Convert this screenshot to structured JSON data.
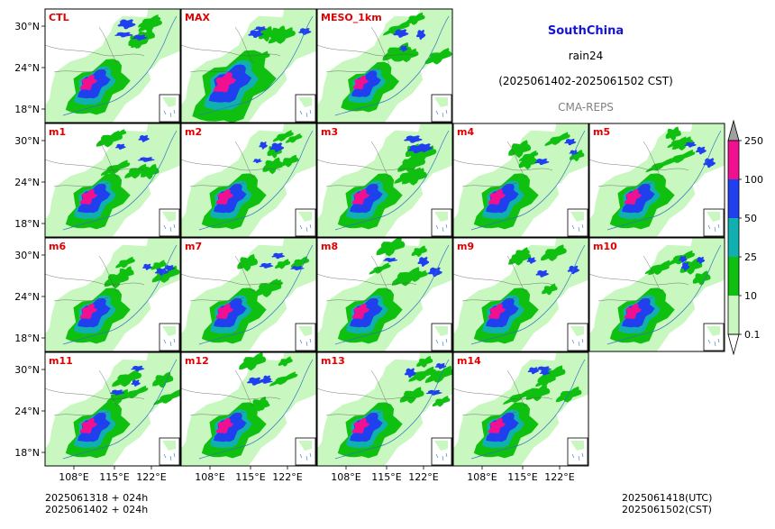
{
  "header": {
    "region": "SouthChina",
    "variable": "rain24",
    "period": "(2025061402-2025061502 CST)",
    "model": "CMA-REPS"
  },
  "colors": {
    "region_title": "#1515d0",
    "panel_label": "#e00000",
    "model_text": "#808080",
    "bins": [
      "#c8f8c0",
      "#10c010",
      "#10b0b0",
      "#2040f0",
      "#f01090",
      "#a0a0a0"
    ]
  },
  "panels": [
    {
      "label": "CTL"
    },
    {
      "label": "MAX"
    },
    {
      "label": "MESO_1km"
    },
    {
      "label": "m1"
    },
    {
      "label": "m2"
    },
    {
      "label": "m3"
    },
    {
      "label": "m4"
    },
    {
      "label": "m5"
    },
    {
      "label": "m6"
    },
    {
      "label": "m7"
    },
    {
      "label": "m8"
    },
    {
      "label": "m9"
    },
    {
      "label": "m10"
    },
    {
      "label": "m11"
    },
    {
      "label": "m12"
    },
    {
      "label": "m13"
    },
    {
      "label": "m14"
    }
  ],
  "axes": {
    "lat_ticks": [
      "30°N",
      "24°N",
      "18°N"
    ],
    "lon_ticks": [
      "108°E",
      "115°E",
      "122°E"
    ]
  },
  "colorbar": {
    "levels": [
      "0.1",
      "10",
      "25",
      "50",
      "100",
      "250"
    ]
  },
  "footer": {
    "init_utc": "2025061318  +  024h",
    "init_cst": "2025061402  +  024h",
    "valid_utc": "2025061418(UTC)",
    "valid_cst": "2025061502(CST)"
  }
}
